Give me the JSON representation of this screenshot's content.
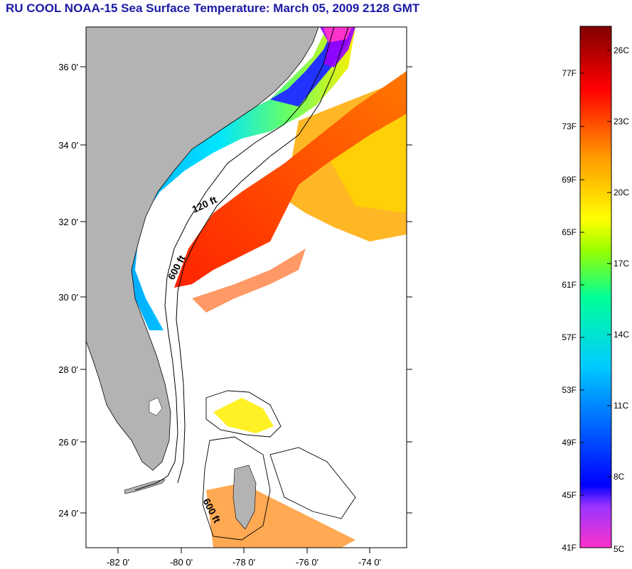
{
  "title": "RU COOL  NOAA-15  Sea Surface Temperature:  March 05, 2009 2128 GMT",
  "map": {
    "lat_labels": [
      "36 0'",
      "34 0'",
      "32 0'",
      "30 0'",
      "28 0'",
      "26 0'",
      "24 0'"
    ],
    "lon_labels": [
      "-82 0'",
      "-80 0'",
      "-78 0'",
      "-76 0'",
      "-74 0'"
    ],
    "contours": [
      "120 ft",
      "600 ft",
      "600 ft"
    ],
    "land_color": "#b3b3b3",
    "ocean_nodata_color": "#ffffff"
  },
  "colorbar": {
    "fahrenheit_labels": [
      "77F",
      "73F",
      "69F",
      "65F",
      "61F",
      "57F",
      "53F",
      "49F",
      "45F",
      "41F"
    ],
    "celsius_labels": [
      "26C",
      "23C",
      "20C",
      "17C",
      "14C",
      "11C",
      "8C",
      "5C"
    ],
    "colors": [
      "#ff33cc",
      "#8a2be2",
      "#0000ff",
      "#00bfff",
      "#00ffcc",
      "#66ff33",
      "#ffff00",
      "#ff9900",
      "#ff0000",
      "#8b0000"
    ]
  }
}
